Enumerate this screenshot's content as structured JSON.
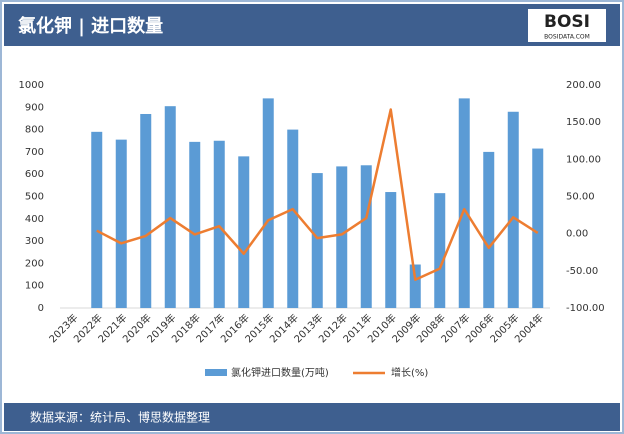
{
  "chart_data": {
    "type": "bar",
    "title": "氯化钾 | 进口数量",
    "logo": {
      "text": "BOSI",
      "url": "BOSIDATA.COM"
    },
    "source": "数据来源：统计局、博思数据整理",
    "categories": [
      "2023年",
      "2022年",
      "2021年",
      "2020年",
      "2019年",
      "2018年",
      "2017年",
      "2016年",
      "2015年",
      "2014年",
      "2013年",
      "2012年",
      "2011年",
      "2010年",
      "2009年",
      "2008年",
      "2007年",
      "2006年",
      "2005年",
      "2004年"
    ],
    "series": [
      {
        "name": "氯化钾进口数量(万吨)",
        "type": "bar",
        "color": "#5b9bd5",
        "values": [
          null,
          790,
          755,
          870,
          905,
          745,
          750,
          680,
          940,
          800,
          605,
          635,
          640,
          520,
          195,
          515,
          940,
          700,
          880,
          715
        ]
      },
      {
        "name": "增长(%)",
        "type": "line",
        "color": "#ed7d31",
        "axis": "y2",
        "values": [
          null,
          4,
          -13,
          -3,
          21,
          -1,
          10,
          -27,
          18,
          33,
          -6,
          -1,
          21,
          167,
          -62,
          -47,
          33,
          -19,
          22,
          1
        ]
      }
    ],
    "ylim": [
      0,
      1000
    ],
    "yticks": [
      0,
      100,
      200,
      300,
      400,
      500,
      600,
      700,
      800,
      900,
      1000
    ],
    "y2lim": [
      -100,
      200
    ],
    "y2ticks": [
      {
        "value": -100,
        "label": "-100.00"
      },
      {
        "value": -50,
        "label": "-50.00"
      },
      {
        "value": 0,
        "label": "0.00"
      },
      {
        "value": 50,
        "label": "50.00"
      },
      {
        "value": 100,
        "label": "100.00"
      },
      {
        "value": 150,
        "label": "150.00"
      },
      {
        "value": 200,
        "label": "200.00"
      }
    ],
    "legend": "bottom"
  }
}
